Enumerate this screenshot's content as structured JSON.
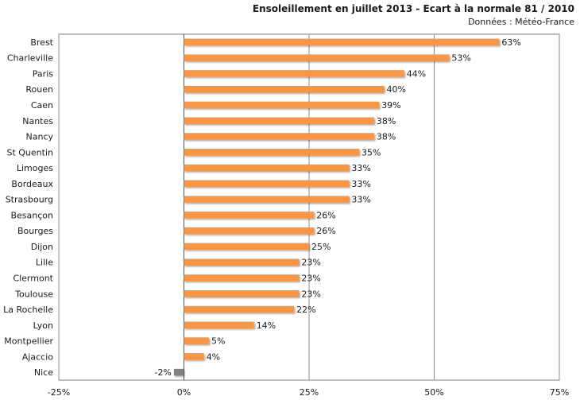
{
  "chart_data": {
    "type": "bar",
    "orientation": "horizontal",
    "title": "Ensoleillement en juillet 2013 - Ecart à la normale 81 / 2010",
    "subtitle": "Données : Météo-France",
    "categories": [
      "Brest",
      "Charleville",
      "Paris",
      "Rouen",
      "Caen",
      "Nantes",
      "Nancy",
      "St Quentin",
      "Limoges",
      "Bordeaux",
      "Strasbourg",
      "Besançon",
      "Bourges",
      "Dijon",
      "Lille",
      "Clermont",
      "Toulouse",
      "La Rochelle",
      "Lyon",
      "Montpellier",
      "Ajaccio",
      "Nice"
    ],
    "values": [
      63,
      53,
      44,
      40,
      39,
      38,
      38,
      35,
      33,
      33,
      33,
      26,
      26,
      25,
      23,
      23,
      23,
      22,
      14,
      5,
      4,
      -2
    ],
    "value_labels": [
      "63%",
      "53%",
      "44%",
      "40%",
      "39%",
      "38%",
      "38%",
      "35%",
      "33%",
      "33%",
      "33%",
      "26%",
      "26%",
      "25%",
      "23%",
      "23%",
      "23%",
      "22%",
      "14%",
      "5%",
      "4%",
      "-2%"
    ],
    "xlim": [
      -25,
      75
    ],
    "x_ticks": [
      -25,
      0,
      25,
      50,
      75
    ],
    "x_tick_labels": [
      "-25%",
      "0%",
      "25%",
      "50%",
      "75%"
    ],
    "grid": true,
    "legend": "none",
    "colors": {
      "positive": "#F79646",
      "negative": "#808080"
    }
  }
}
